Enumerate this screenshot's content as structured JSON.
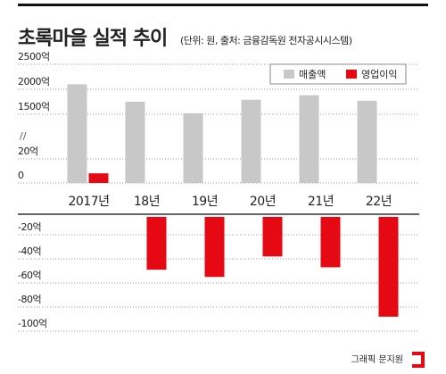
{
  "chart_data": {
    "type": "bar",
    "title": "초록마을 실적 추이",
    "subtitle": "(단위: 원, 출처: 금융감독원 전자공시시스템)",
    "categories": [
      "2017년",
      "18년",
      "19년",
      "20년",
      "21년",
      "22년"
    ],
    "series": [
      {
        "name": "매출액",
        "color": "#c8c8c8",
        "values": [
          2100,
          1750,
          1520,
          1790,
          1880,
          1770
        ]
      },
      {
        "name": "영업이익",
        "color": "#e50914",
        "values": [
          8,
          -49,
          -55,
          -38,
          -47,
          -88
        ]
      }
    ],
    "ylim": [
      -100,
      2500
    ],
    "yticks": [
      {
        "value": 2500,
        "label": "2500억"
      },
      {
        "value": 2000,
        "label": "2000억"
      },
      {
        "value": 1500,
        "label": "1500억"
      },
      {
        "value": 20,
        "label": "20억"
      },
      0,
      {
        "value": -20,
        "label": "-20억"
      },
      {
        "value": -40,
        "label": "-40억"
      },
      {
        "value": -60,
        "label": "-60억"
      },
      {
        "value": -80,
        "label": "-80억"
      },
      {
        "value": -100,
        "label": "-100억"
      }
    ],
    "grid": true,
    "legend": "top-right",
    "credit": "그래픽 문지원"
  }
}
